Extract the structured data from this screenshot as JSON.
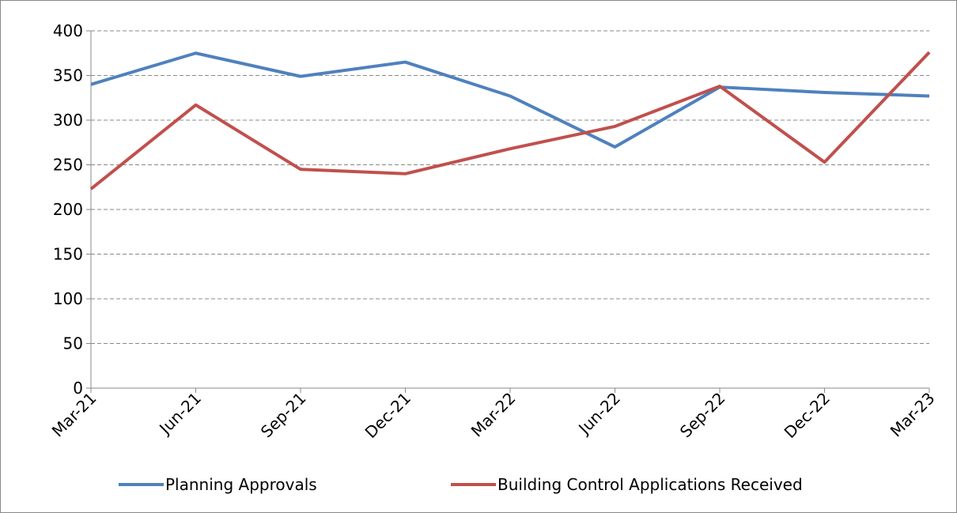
{
  "chart_data": {
    "type": "line",
    "categories": [
      "Mar-21",
      "Jun-21",
      "Sep-21",
      "Dec-21",
      "Mar-22",
      "Jun-22",
      "Sep-22",
      "Dec-22",
      "Mar-23"
    ],
    "series": [
      {
        "name": "Planning Approvals",
        "color": "#4f81bd",
        "values": [
          340,
          375,
          349,
          365,
          327,
          270,
          337,
          331,
          327
        ]
      },
      {
        "name": "Building Control Applications Received",
        "color": "#c0504d",
        "values": [
          223,
          317,
          245,
          240,
          268,
          293,
          338,
          253,
          376
        ]
      }
    ],
    "ylim": [
      0,
      400
    ],
    "yticks": [
      0,
      50,
      100,
      150,
      200,
      250,
      300,
      350,
      400
    ],
    "grid": true,
    "legend": "bottom"
  }
}
